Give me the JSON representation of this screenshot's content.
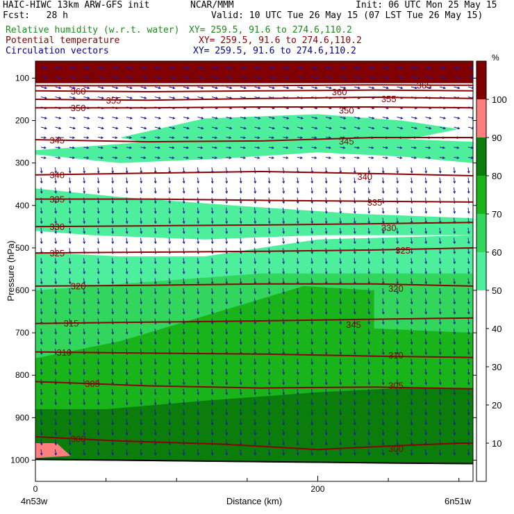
{
  "header": {
    "model": "HAIC-HIWC 13km ARW-GFS init",
    "org": "NCAR/MMM",
    "init": "Init: 06 UTC Mon 25 May 15",
    "fcst": "Fcst:   28 h",
    "valid": "Valid: 10 UTC Tue 26 May 15 (07 LST Tue 26 May 15)",
    "fields": [
      {
        "label": "Relative humidity (w.r.t. water)",
        "xy": "XY= 259.5, 91.6 to 274.6,110.2",
        "color": "#1a8c1a"
      },
      {
        "label": "Potential temperature",
        "xy": "XY= 259.5, 91.6 to 274.6,110.2",
        "color": "#8b0000"
      },
      {
        "label": "Circulation vectors",
        "xy": "XY= 259.5, 91.6 to 274.6,110.2",
        "color": "#00008b"
      }
    ]
  },
  "chart_data": {
    "type": "contour-cross-section",
    "xlabel": "Distance (km)",
    "ylabel": "Pressure (hPa)",
    "x_ticks": [
      {
        "value": 0,
        "label": "0"
      },
      {
        "value": 200,
        "label": "200"
      }
    ],
    "x_range": [
      0,
      310
    ],
    "x_end_labels": {
      "left": "4n53w",
      "right": "6n51w"
    },
    "y_ticks": [
      100,
      200,
      300,
      400,
      500,
      600,
      700,
      800,
      900,
      1000
    ],
    "y_range": [
      1050,
      60
    ],
    "colorbar": {
      "unit": "%",
      "levels": [
        10,
        20,
        30,
        40,
        50,
        60,
        70,
        80,
        90,
        100
      ],
      "colors": [
        "#ffffff",
        "#ffffff",
        "#ffffff",
        "#ffffff",
        "#ffffff",
        "#4def9c",
        "#33d65c",
        "#19b419",
        "#0a7d0a",
        "#ff7f7f",
        "#800000"
      ]
    },
    "theta_isentropes": [
      {
        "value": 300,
        "label": "300",
        "points": [
          [
            0,
            945
          ],
          [
            60,
            955
          ],
          [
            130,
            962
          ],
          [
            200,
            975
          ],
          [
            230,
            970
          ],
          [
            300,
            960
          ],
          [
            310,
            960
          ]
        ],
        "label_x": 25
      },
      {
        "value": 305,
        "label": "305",
        "points": [
          [
            0,
            815
          ],
          [
            80,
            825
          ],
          [
            160,
            830
          ],
          [
            240,
            828
          ],
          [
            310,
            832
          ]
        ],
        "label_x": 35
      },
      {
        "value": 310,
        "label": "310",
        "points": [
          [
            0,
            745
          ],
          [
            80,
            748
          ],
          [
            160,
            750
          ],
          [
            240,
            755
          ],
          [
            310,
            758
          ]
        ],
        "label_x": 15
      },
      {
        "value": 315,
        "label": "315",
        "points": [
          [
            0,
            678
          ],
          [
            80,
            675
          ],
          [
            160,
            672
          ],
          [
            240,
            668
          ],
          [
            310,
            665
          ]
        ],
        "label_x": 20
      },
      {
        "value": 320,
        "label": "320",
        "points": [
          [
            0,
            590
          ],
          [
            80,
            588
          ],
          [
            160,
            585
          ],
          [
            240,
            585
          ],
          [
            310,
            590
          ]
        ],
        "label_x": 25
      },
      {
        "value": 325,
        "label": "325",
        "points": [
          [
            0,
            512
          ],
          [
            80,
            510
          ],
          [
            160,
            508
          ],
          [
            240,
            505
          ],
          [
            310,
            500
          ]
        ],
        "label_x": 10
      },
      {
        "value": 330,
        "label": "330",
        "points": [
          [
            0,
            450
          ],
          [
            80,
            448
          ],
          [
            160,
            446
          ],
          [
            240,
            443
          ],
          [
            310,
            440
          ]
        ],
        "label_x": 10
      },
      {
        "value": 335,
        "label": "335",
        "points": [
          [
            0,
            385
          ],
          [
            80,
            385
          ],
          [
            160,
            388
          ],
          [
            240,
            390
          ],
          [
            310,
            392
          ]
        ],
        "label_x": 10
      },
      {
        "value": 340,
        "label": "340",
        "points": [
          [
            0,
            328
          ],
          [
            80,
            324
          ],
          [
            160,
            320
          ],
          [
            240,
            325
          ],
          [
            310,
            330
          ]
        ],
        "label_x": 10
      },
      {
        "value": 345,
        "label": "345",
        "points": [
          [
            0,
            245
          ],
          [
            80,
            250
          ],
          [
            160,
            248
          ],
          [
            240,
            240
          ],
          [
            310,
            240
          ]
        ],
        "label_x": 10
      },
      {
        "value": 345,
        "label": "345",
        "points": [],
        "label_x": 220,
        "label_p": 680
      },
      {
        "value": 350,
        "label": "350",
        "points": [
          [
            0,
            170
          ],
          [
            80,
            170
          ],
          [
            160,
            168
          ],
          [
            240,
            168
          ],
          [
            310,
            170
          ]
        ],
        "label_x": 25
      },
      {
        "value": 355,
        "label": "355",
        "points": [
          [
            0,
            150
          ],
          [
            80,
            152
          ],
          [
            160,
            148
          ],
          [
            240,
            145
          ],
          [
            310,
            148
          ]
        ],
        "label_x": 50
      },
      {
        "value": 360,
        "label": "360",
        "points": [
          [
            0,
            130
          ],
          [
            80,
            132
          ],
          [
            160,
            130
          ],
          [
            240,
            128
          ],
          [
            310,
            130
          ]
        ],
        "label_x": 25
      },
      {
        "value": 365,
        "label": "365",
        "points": [
          [
            0,
            118
          ],
          [
            80,
            118
          ],
          [
            160,
            118
          ],
          [
            240,
            116
          ],
          [
            310,
            117
          ]
        ],
        "label_x": 270
      }
    ],
    "extra_labels": [
      {
        "text": "340",
        "x": 228,
        "p": 332
      },
      {
        "text": "335",
        "x": 235,
        "p": 392
      },
      {
        "text": "330",
        "x": 245,
        "p": 452
      },
      {
        "text": "325",
        "x": 255,
        "p": 505
      },
      {
        "text": "320",
        "x": 250,
        "p": 595
      },
      {
        "text": "310",
        "x": 250,
        "p": 752
      },
      {
        "text": "305",
        "x": 250,
        "p": 823
      },
      {
        "text": "300",
        "x": 250,
        "p": 972
      },
      {
        "text": "350",
        "x": 215,
        "p": 175
      },
      {
        "text": "345",
        "x": 215,
        "p": 248
      },
      {
        "text": "355",
        "x": 245,
        "p": 148
      },
      {
        "text": "360",
        "x": 210,
        "p": 132
      }
    ]
  }
}
